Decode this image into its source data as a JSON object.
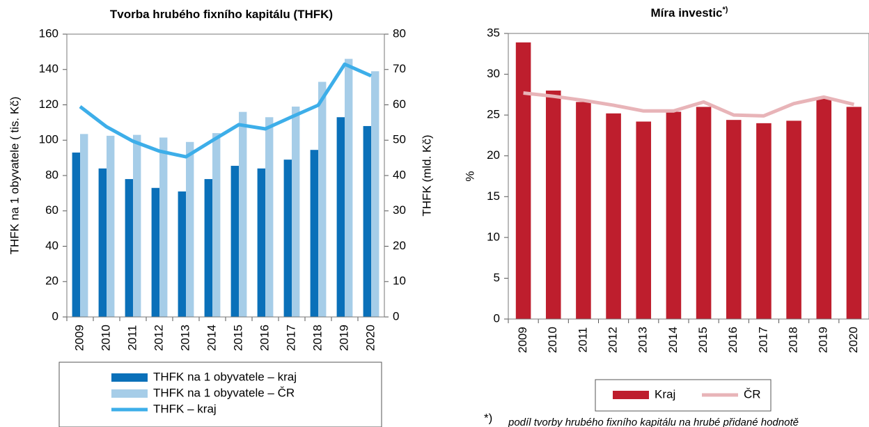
{
  "chart_data": [
    {
      "type": "bar",
      "title": "Tvorba hrubého fixního kapitálu (THFK)",
      "y_label": "THFK na 1 obyvatele ( tis. Kč)",
      "y2_label": "THFK (mld. Kč)",
      "categories": [
        "2009",
        "2010",
        "2011",
        "2012",
        "2013",
        "2014",
        "2015",
        "2016",
        "2017",
        "2018",
        "2019",
        "2020"
      ],
      "series": [
        {
          "name": "THFK na 1 obyvatele – kraj",
          "type": "bar",
          "color": "#0a70b9",
          "values": [
            93,
            84,
            78,
            73,
            71,
            78,
            85.5,
            84,
            89,
            94.5,
            113,
            108
          ]
        },
        {
          "name": "THFK na 1 obyvatele – ČR",
          "type": "bar",
          "color": "#a6cde8",
          "values": [
            103.5,
            102.5,
            103,
            101.5,
            99,
            104,
            116,
            113,
            119,
            133,
            146,
            139
          ]
        },
        {
          "name": "THFK – kraj",
          "type": "line",
          "axis": "y2",
          "color": "#3daee9",
          "values": [
            59.5,
            53.8,
            49.7,
            46.9,
            45.3,
            49.9,
            54.4,
            53.2,
            56.6,
            59.9,
            71.5,
            68.2
          ]
        }
      ],
      "ylim": [
        0,
        160
      ],
      "yticks": [
        0,
        20,
        40,
        60,
        80,
        100,
        120,
        140,
        160
      ],
      "y2lim": [
        0,
        80
      ],
      "y2ticks": [
        0,
        10,
        20,
        30,
        40,
        50,
        60,
        70,
        80
      ],
      "legend": "bottom"
    },
    {
      "type": "bar",
      "title": "Míra investic",
      "title_note": "*)",
      "y_label": "%",
      "categories": [
        "2009",
        "2010",
        "2011",
        "2012",
        "2013",
        "2014",
        "2015",
        "2016",
        "2017",
        "2018",
        "2019",
        "2020"
      ],
      "series": [
        {
          "name": "Kraj",
          "type": "bar",
          "color": "#be1e2d",
          "values": [
            33.9,
            28,
            26.6,
            25.2,
            24.2,
            25.4,
            26,
            24.4,
            24,
            24.3,
            27,
            26
          ]
        },
        {
          "name": "ČR",
          "type": "line",
          "color": "#e8b4b8",
          "values": [
            27.7,
            27.3,
            26.8,
            26.2,
            25.5,
            25.5,
            26.6,
            25,
            24.9,
            26.4,
            27.2,
            26.3
          ]
        }
      ],
      "ylim": [
        0,
        35
      ],
      "yticks": [
        0,
        5,
        10,
        15,
        20,
        25,
        30,
        35
      ],
      "legend": "bottom",
      "footnote_mark": "*)",
      "footnote": "podíl tvorby hrubého fixního kapitálu na hrubé přidané hodnotě"
    }
  ]
}
